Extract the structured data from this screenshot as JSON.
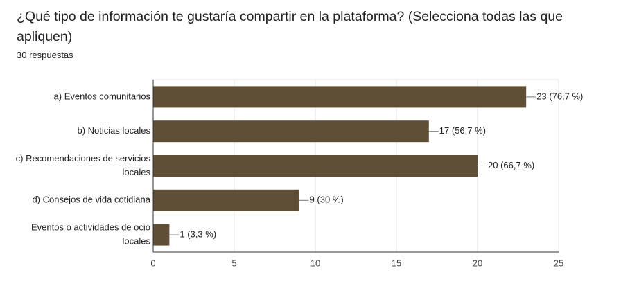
{
  "header": {
    "question": "¿Qué tipo de información te gustaría compartir en la plataforma? (Selecciona todas las que apliquen)",
    "responses": "30 respuestas"
  },
  "chart_data": {
    "type": "bar",
    "orientation": "horizontal",
    "categories": [
      [
        "a) Eventos comunitarios"
      ],
      [
        "b) Noticias locales"
      ],
      [
        "c) Recomendaciones de servicios",
        "locales"
      ],
      [
        "d) Consejos de vida cotidiana"
      ],
      [
        "Eventos o actividades de ocio",
        "locales"
      ]
    ],
    "values": [
      23,
      17,
      20,
      9,
      1
    ],
    "data_labels": [
      "23 (76,7 %)",
      "17 (56,7 %)",
      "20 (66,7 %)",
      "9 (30 %)",
      "1 (3,3 %)"
    ],
    "xlim": [
      0,
      25
    ],
    "xticks": [
      0,
      5,
      10,
      15,
      20,
      25
    ],
    "grid": true,
    "bar_color": "#5f4f36",
    "title": "",
    "xlabel": "",
    "ylabel": ""
  }
}
